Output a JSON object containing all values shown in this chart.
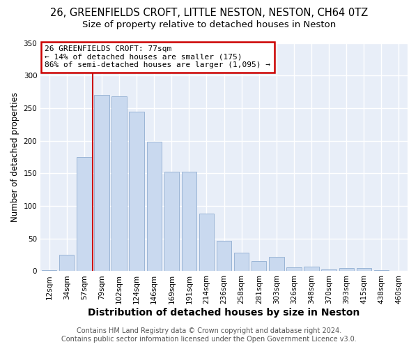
{
  "title1": "26, GREENFIELDS CROFT, LITTLE NESTON, NESTON, CH64 0TZ",
  "title2": "Size of property relative to detached houses in Neston",
  "xlabel": "Distribution of detached houses by size in Neston",
  "ylabel": "Number of detached properties",
  "categories": [
    "12sqm",
    "34sqm",
    "57sqm",
    "79sqm",
    "102sqm",
    "124sqm",
    "146sqm",
    "169sqm",
    "191sqm",
    "214sqm",
    "236sqm",
    "258sqm",
    "281sqm",
    "303sqm",
    "326sqm",
    "348sqm",
    "370sqm",
    "393sqm",
    "415sqm",
    "438sqm",
    "460sqm"
  ],
  "values": [
    2,
    25,
    175,
    270,
    268,
    245,
    198,
    153,
    153,
    88,
    47,
    28,
    15,
    22,
    6,
    7,
    3,
    5,
    5,
    2,
    1
  ],
  "bar_color": "#c9d9ef",
  "bar_edge_color": "#9bb5d6",
  "red_line_index": 3,
  "annotation_line1": "26 GREENFIELDS CROFT: 77sqm",
  "annotation_line2": "← 14% of detached houses are smaller (175)",
  "annotation_line3": "86% of semi-detached houses are larger (1,095) →",
  "annotation_box_color": "#ffffff",
  "annotation_border_color": "#cc0000",
  "red_line_color": "#cc0000",
  "ylim": [
    0,
    350
  ],
  "yticks": [
    0,
    50,
    100,
    150,
    200,
    250,
    300,
    350
  ],
  "background_color": "#e8eef8",
  "grid_color": "#ffffff",
  "footer1": "Contains HM Land Registry data © Crown copyright and database right 2024.",
  "footer2": "Contains public sector information licensed under the Open Government Licence v3.0.",
  "title1_fontsize": 10.5,
  "title2_fontsize": 9.5,
  "xlabel_fontsize": 10,
  "ylabel_fontsize": 8.5,
  "tick_fontsize": 7.5,
  "ann_fontsize": 8,
  "footer_fontsize": 7
}
